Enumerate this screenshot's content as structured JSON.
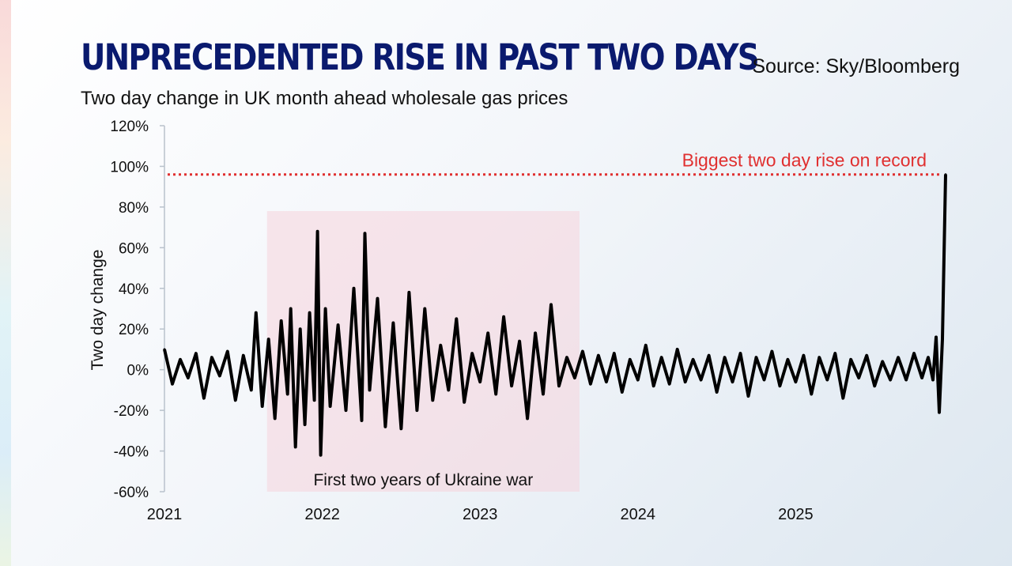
{
  "header": {
    "title": "UNPRECEDENTED RISE IN PAST TWO DAYS",
    "subtitle": "Two day change in UK month ahead wholesale gas prices",
    "source": "Source: Sky/Bloomberg"
  },
  "colors": {
    "title": "#0a1a6e",
    "series": "#000000",
    "record_line": "#e03030",
    "shade": "#f5d3dc"
  },
  "chart_data": {
    "type": "line",
    "title": "UNPRECEDENTED RISE IN PAST TWO DAYS",
    "subtitle": "Two day change in UK month ahead wholesale gas prices",
    "ylabel": "Two day change",
    "xlabel": "",
    "ylim": [
      -60,
      120
    ],
    "xlim": [
      2021.0,
      2025.95
    ],
    "y_ticks": [
      -60,
      -40,
      -20,
      0,
      20,
      40,
      60,
      80,
      100,
      120
    ],
    "y_tick_labels": [
      "-60%",
      "-40%",
      "-20%",
      "0%",
      "20%",
      "40%",
      "60%",
      "80%",
      "100%",
      "120%"
    ],
    "x_ticks": [
      2021,
      2022,
      2023,
      2024,
      2025
    ],
    "x_tick_labels": [
      "2021",
      "2022",
      "2023",
      "2024",
      "2025"
    ],
    "grid": false,
    "reference_line": {
      "y": 96,
      "label": "Biggest two day rise on record"
    },
    "shaded_region": {
      "x": [
        2021.65,
        2023.63
      ],
      "label": "First two years of Ukraine war"
    },
    "series": [
      {
        "x": [
          2021.0,
          2021.05,
          2021.1,
          2021.15,
          2021.2,
          2021.25,
          2021.3,
          2021.35,
          2021.4,
          2021.45,
          2021.5,
          2021.55,
          2021.58,
          2021.62,
          2021.66,
          2021.7,
          2021.74,
          2021.78,
          2021.8,
          2021.83,
          2021.86,
          2021.89,
          2021.92,
          2021.95,
          2021.97,
          2021.99,
          2022.02,
          2022.05,
          2022.1,
          2022.15,
          2022.2,
          2022.25,
          2022.27,
          2022.3,
          2022.35,
          2022.4,
          2022.45,
          2022.5,
          2022.55,
          2022.6,
          2022.65,
          2022.7,
          2022.75,
          2022.8,
          2022.85,
          2022.9,
          2022.95,
          2023.0,
          2023.05,
          2023.1,
          2023.15,
          2023.2,
          2023.25,
          2023.3,
          2023.35,
          2023.4,
          2023.45,
          2023.5,
          2023.55,
          2023.6,
          2023.65,
          2023.7,
          2023.75,
          2023.8,
          2023.85,
          2023.9,
          2023.95,
          2024.0,
          2024.05,
          2024.1,
          2024.15,
          2024.2,
          2024.25,
          2024.3,
          2024.35,
          2024.4,
          2024.45,
          2024.5,
          2024.55,
          2024.6,
          2024.65,
          2024.7,
          2024.75,
          2024.8,
          2024.85,
          2024.9,
          2024.95,
          2025.0,
          2025.05,
          2025.1,
          2025.15,
          2025.2,
          2025.25,
          2025.3,
          2025.35,
          2025.4,
          2025.45,
          2025.5,
          2025.55,
          2025.6,
          2025.65,
          2025.7,
          2025.75,
          2025.8,
          2025.84,
          2025.87,
          2025.89,
          2025.91,
          2025.93,
          2025.95
        ],
        "values": [
          10,
          -7,
          5,
          -4,
          8,
          -14,
          6,
          -3,
          9,
          -15,
          7,
          -10,
          28,
          -18,
          15,
          -24,
          24,
          -12,
          30,
          -38,
          20,
          -27,
          28,
          -15,
          68,
          -42,
          30,
          -18,
          22,
          -20,
          40,
          -25,
          67,
          -10,
          35,
          -28,
          23,
          -29,
          38,
          -20,
          30,
          -15,
          12,
          -10,
          25,
          -16,
          8,
          -6,
          18,
          -12,
          26,
          -8,
          14,
          -24,
          18,
          -12,
          32,
          -8,
          6,
          -4,
          9,
          -7,
          7,
          -6,
          8,
          -11,
          5,
          -5,
          12,
          -8,
          6,
          -7,
          10,
          -6,
          5,
          -5,
          7,
          -11,
          6,
          -6,
          8,
          -13,
          6,
          -5,
          9,
          -8,
          5,
          -6,
          7,
          -12,
          6,
          -5,
          8,
          -14,
          5,
          -4,
          7,
          -8,
          4,
          -5,
          6,
          -5,
          8,
          -4,
          6,
          -5,
          16,
          -21,
          15,
          96
        ]
      }
    ]
  }
}
